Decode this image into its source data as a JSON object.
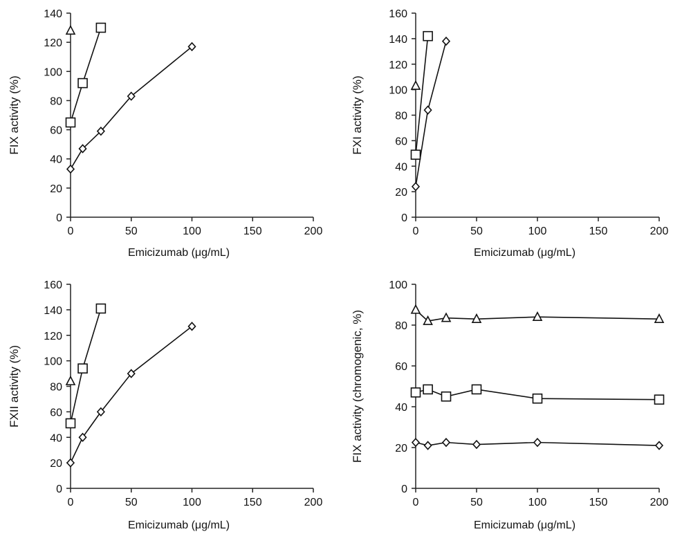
{
  "chart_data": [
    {
      "type": "line",
      "xlabel": "Emicizumab (μg/mL)",
      "ylabel": "FIX activity (%)",
      "xlim": [
        0,
        200
      ],
      "ylim": [
        0,
        140
      ],
      "xticks": [
        "0",
        "50",
        "100",
        "150",
        "200"
      ],
      "yticks": [
        "0",
        "20",
        "40",
        "60",
        "80",
        "100",
        "120",
        "140"
      ],
      "grid": false,
      "series": [
        {
          "marker": "diamond",
          "x": [
            0,
            10,
            25,
            50,
            100
          ],
          "y": [
            33,
            47,
            59,
            83,
            117
          ]
        },
        {
          "marker": "square",
          "x": [
            0,
            10,
            25
          ],
          "y": [
            65,
            92,
            130
          ]
        },
        {
          "marker": "triangle",
          "x": [
            0
          ],
          "y": [
            128
          ]
        }
      ]
    },
    {
      "type": "line",
      "xlabel": "Emicizumab (μg/mL)",
      "ylabel": "FXI activity (%)",
      "xlim": [
        0,
        200
      ],
      "ylim": [
        0,
        160
      ],
      "xticks": [
        "0",
        "50",
        "100",
        "150",
        "200"
      ],
      "yticks": [
        "0",
        "20",
        "40",
        "60",
        "80",
        "100",
        "120",
        "140",
        "160"
      ],
      "grid": false,
      "series": [
        {
          "marker": "diamond",
          "x": [
            0,
            10,
            25
          ],
          "y": [
            24,
            84,
            138
          ]
        },
        {
          "marker": "square",
          "x": [
            0,
            10
          ],
          "y": [
            49,
            142
          ]
        },
        {
          "marker": "triangle",
          "x": [
            0
          ],
          "y": [
            103
          ]
        }
      ]
    },
    {
      "type": "line",
      "xlabel": "Emicizumab (μg/mL)",
      "ylabel": "FXII activity (%)",
      "xlim": [
        0,
        200
      ],
      "ylim": [
        0,
        160
      ],
      "xticks": [
        "0",
        "50",
        "100",
        "150",
        "200"
      ],
      "yticks": [
        "0",
        "20",
        "40",
        "60",
        "80",
        "100",
        "120",
        "140",
        "160"
      ],
      "grid": false,
      "series": [
        {
          "marker": "diamond",
          "x": [
            0,
            10,
            25,
            50,
            100
          ],
          "y": [
            20,
            40,
            60,
            90,
            127
          ]
        },
        {
          "marker": "square",
          "x": [
            0,
            10,
            25
          ],
          "y": [
            51,
            94,
            141
          ]
        },
        {
          "marker": "triangle",
          "x": [
            0
          ],
          "y": [
            84
          ]
        }
      ]
    },
    {
      "type": "line",
      "xlabel": "Emicizumab (μg/mL)",
      "ylabel": "FIX activity (chromogenic, %)",
      "xlim": [
        0,
        200
      ],
      "ylim": [
        0,
        100
      ],
      "xticks": [
        "0",
        "50",
        "100",
        "150",
        "200"
      ],
      "yticks": [
        "0",
        "20",
        "40",
        "60",
        "80",
        "100"
      ],
      "grid": false,
      "series": [
        {
          "marker": "diamond",
          "x": [
            0,
            10,
            25,
            50,
            100,
            200
          ],
          "y": [
            22.5,
            21,
            22.5,
            21.5,
            22.5,
            21
          ]
        },
        {
          "marker": "square",
          "x": [
            0,
            10,
            25,
            50,
            100,
            200
          ],
          "y": [
            47,
            48.5,
            45,
            48.5,
            44,
            43.5
          ]
        },
        {
          "marker": "triangle",
          "x": [
            0,
            10,
            25,
            50,
            100,
            200
          ],
          "y": [
            87.5,
            82,
            83.5,
            83,
            84,
            83
          ]
        }
      ]
    }
  ]
}
